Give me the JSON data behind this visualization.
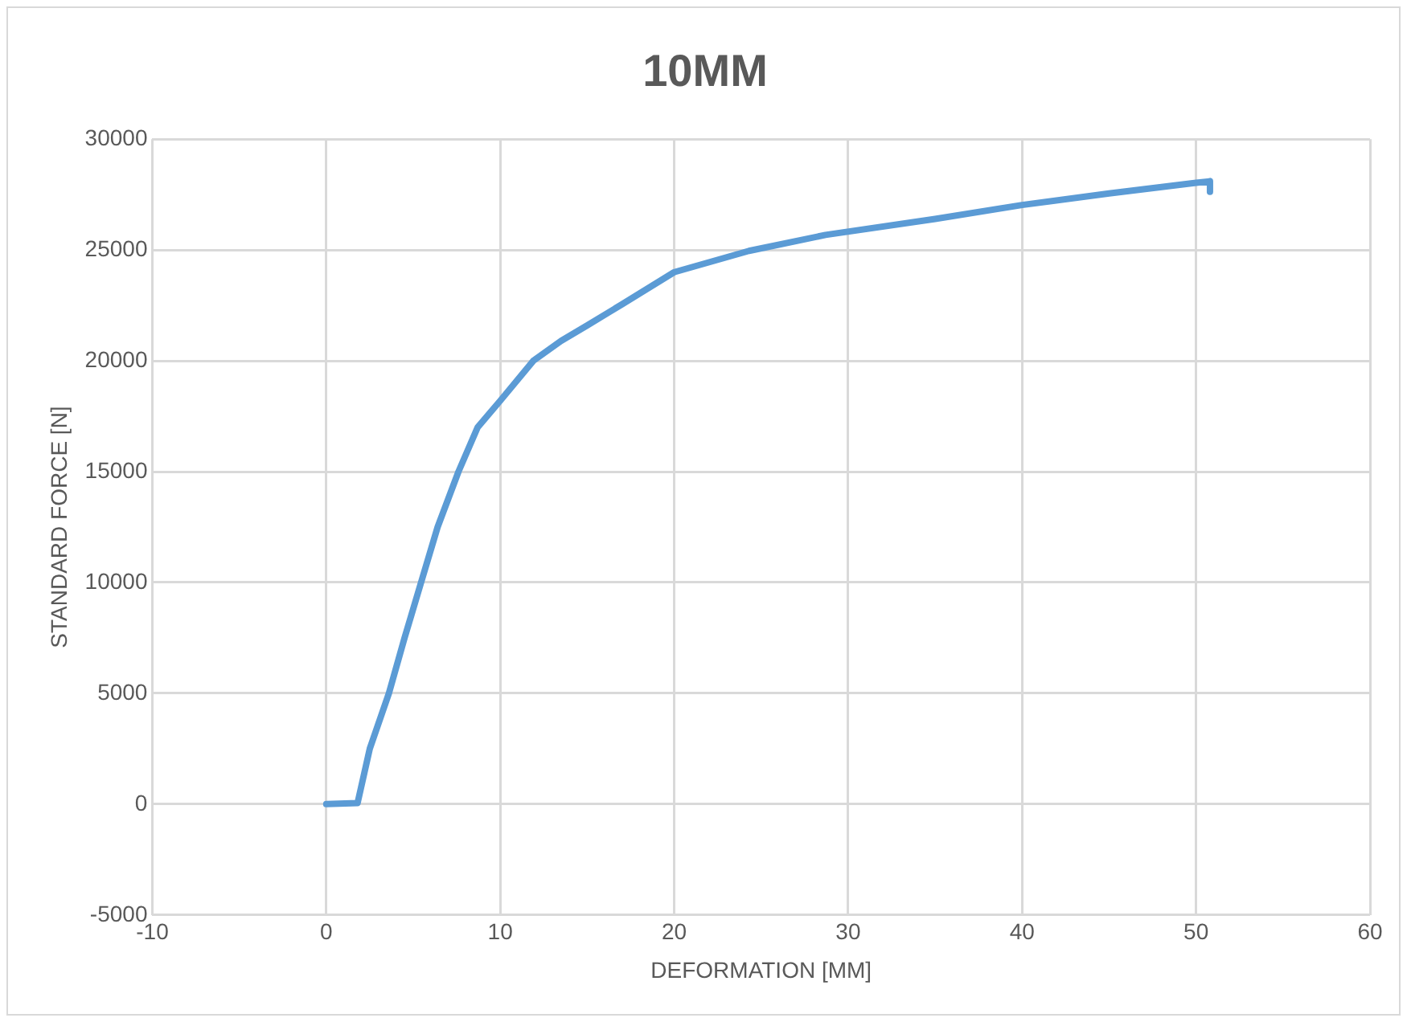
{
  "chart_data": {
    "type": "line",
    "title": "10MM",
    "xlabel": "DEFORMATION [MM]",
    "ylabel": "STANDARD FORCE [N]",
    "xlim": [
      -10,
      60
    ],
    "xticks": [
      -10,
      0,
      10,
      20,
      30,
      40,
      50,
      60
    ],
    "ylim": [
      -5000,
      30000
    ],
    "yticks": [
      -5000,
      0,
      5000,
      10000,
      15000,
      20000,
      25000,
      30000
    ],
    "grid": true,
    "legend": false,
    "marker": "none",
    "line_style": "solid",
    "series": [
      {
        "color": "#5b9bd5",
        "x": [
          0,
          1.8,
          2.5,
          3.6,
          4.5,
          5.45,
          6.4,
          7.6,
          8.7,
          10,
          11.9,
          13.5,
          15,
          17,
          20,
          24.3,
          28.7,
          35,
          40,
          45,
          50,
          50.8,
          50.8
        ],
        "values": [
          0,
          50,
          2500,
          5000,
          7500,
          10000,
          12500,
          15000,
          17000,
          18200,
          20000,
          20900,
          21600,
          22550,
          24000,
          24960,
          25680,
          26400,
          27030,
          27550,
          28030,
          28100,
          27620
        ]
      }
    ]
  }
}
